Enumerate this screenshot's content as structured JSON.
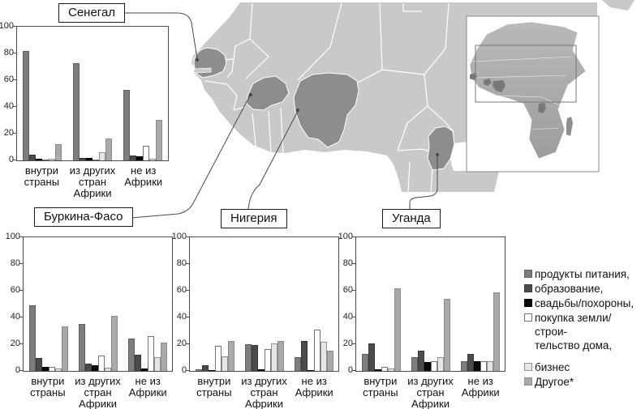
{
  "figure": {
    "title": "",
    "note_marker": "*"
  },
  "map": {
    "highlighted_countries": [
      "Сенегал",
      "Буркина-Фасо",
      "Нигерия",
      "Уганда"
    ],
    "colors": {
      "land": "#c9c9c9",
      "highlight": "#8d8d8d",
      "border": "#ffffff",
      "inset_land_top": "#b9b9b9",
      "inset_land_bottom": "#9d9d9d",
      "inset_highlight": "#787878",
      "callout": "#4a4a4a"
    }
  },
  "axes": {
    "y_ticks": [
      0,
      20,
      40,
      60,
      80,
      100
    ]
  },
  "legend": {
    "items": [
      {
        "label": "продукты питания,",
        "color": "#7d7d7d",
        "border": "#5f5f5f"
      },
      {
        "label": "образование,",
        "color": "#4b4b4b",
        "border": "#383838"
      },
      {
        "label": "свадьбы/похороны,",
        "color": "#0b0b0b",
        "border": "#000000"
      },
      {
        "label": "покупка земли/строи-\nтельство дома,",
        "color": "#ffffff",
        "border": "#747474"
      },
      {
        "label": "бизнес",
        "color": "#e6e6e6",
        "border": "#909090",
        "gap_before": true
      },
      {
        "label": "Другое*",
        "color": "#a9a9a9",
        "border": "#8c8c8c"
      }
    ]
  },
  "chart_data": [
    {
      "type": "bar",
      "title": "Сенегал",
      "categories": [
        "внутри страны",
        "из других стран Африки",
        "не из Африки"
      ],
      "series": [
        {
          "name": "продукты питания",
          "values": [
            82,
            73,
            53
          ]
        },
        {
          "name": "образование",
          "values": [
            4,
            2,
            3.5
          ]
        },
        {
          "name": "свадьбы/похороны",
          "values": [
            1.5,
            2,
            3
          ]
        },
        {
          "name": "покупка земли/строительство дома",
          "values": [
            0.5,
            0.5,
            11
          ]
        },
        {
          "name": "бизнес",
          "values": [
            1,
            6,
            1.5
          ]
        },
        {
          "name": "другое",
          "values": [
            12,
            16.5,
            30
          ]
        }
      ],
      "ylim": [
        0,
        100
      ],
      "grid": false,
      "legend_position": "right-of-figure"
    },
    {
      "type": "bar",
      "title": "Буркина-Фасо",
      "categories": [
        "внутри страны",
        "из других стран Африки",
        "не из Африки"
      ],
      "series": [
        {
          "name": "продукты питания",
          "values": [
            49,
            35,
            24
          ]
        },
        {
          "name": "образование",
          "values": [
            9.5,
            5.5,
            12
          ]
        },
        {
          "name": "свадьбы/похороны",
          "values": [
            3,
            4,
            2
          ]
        },
        {
          "name": "покупка земли/строительство дома",
          "values": [
            3,
            11.5,
            26
          ]
        },
        {
          "name": "бизнес",
          "values": [
            2,
            2.5,
            10.5
          ]
        },
        {
          "name": "другое",
          "values": [
            33.5,
            41,
            21
          ]
        }
      ],
      "ylim": [
        0,
        100
      ],
      "grid": false,
      "legend_position": "right-of-figure"
    },
    {
      "type": "bar",
      "title": "Нигерия",
      "categories": [
        "внутри страны",
        "из других стран Африки",
        "не из Африки"
      ],
      "series": [
        {
          "name": "продукты питания",
          "values": [
            1.5,
            20,
            10
          ]
        },
        {
          "name": "образование",
          "values": [
            4,
            19.5,
            22.5
          ]
        },
        {
          "name": "свадьбы/похороны",
          "values": [
            0.5,
            1,
            0.5
          ]
        },
        {
          "name": "покупка земли/строительство дома",
          "values": [
            19,
            16.5,
            31
          ]
        },
        {
          "name": "бизнес",
          "values": [
            11,
            20.5,
            22
          ]
        },
        {
          "name": "другое",
          "values": [
            22.5,
            22.5,
            15
          ]
        }
      ],
      "ylim": [
        0,
        100
      ],
      "grid": false,
      "legend_position": "right-of-figure"
    },
    {
      "type": "bar",
      "title": "Уганда",
      "categories": [
        "внутри страны",
        "из других стран Африки",
        "не из Африки"
      ],
      "series": [
        {
          "name": "продукты питания",
          "values": [
            13,
            10,
            7.5
          ]
        },
        {
          "name": "образование",
          "values": [
            20.5,
            15,
            13
          ]
        },
        {
          "name": "свадьбы/похороны",
          "values": [
            1.5,
            6.5,
            7
          ]
        },
        {
          "name": "покупка земли/строительство дома",
          "values": [
            3,
            7,
            7
          ]
        },
        {
          "name": "бизнес",
          "values": [
            2,
            10,
            7.5
          ]
        },
        {
          "name": "другое",
          "values": [
            62,
            54,
            59
          ]
        }
      ],
      "ylim": [
        0,
        100
      ],
      "grid": false,
      "legend_position": "right-of-figure"
    }
  ]
}
